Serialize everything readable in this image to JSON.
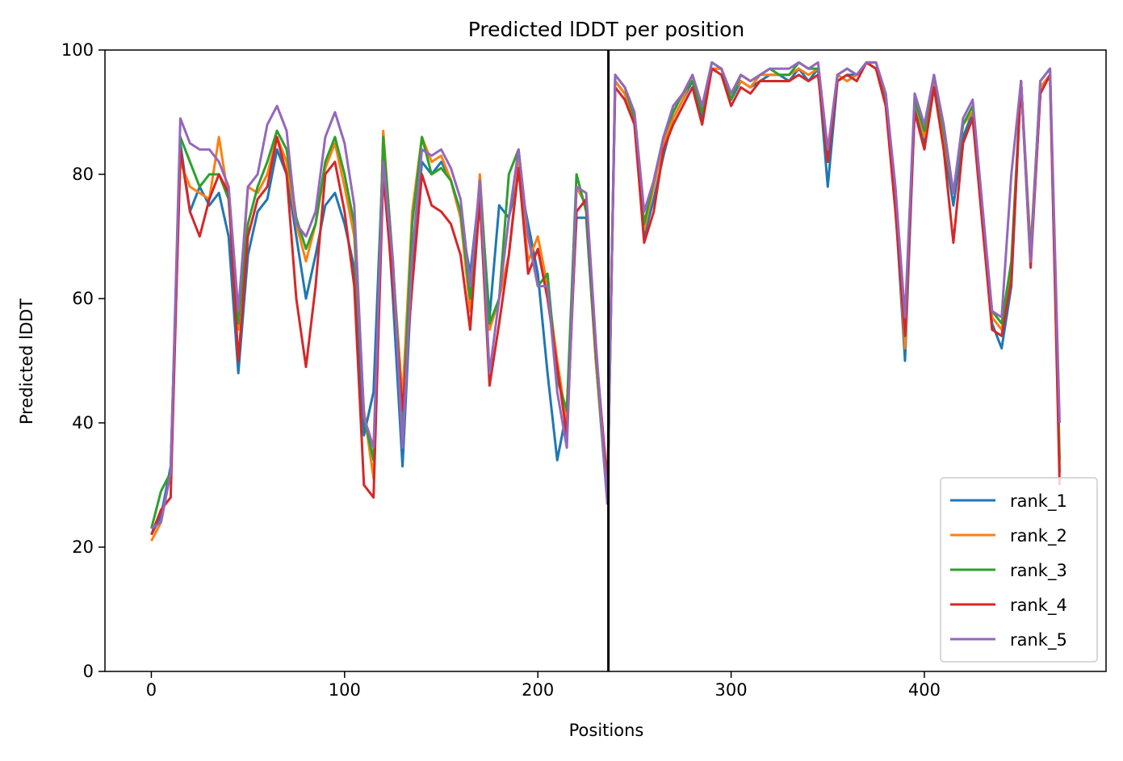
{
  "chart_data": {
    "type": "line",
    "title": "Predicted lDDT per position",
    "xlabel": "Positions",
    "ylabel": "Predicted lDDT",
    "xlim": [
      -24,
      494
    ],
    "ylim": [
      0,
      100
    ],
    "xticks": [
      0,
      100,
      200,
      300,
      400
    ],
    "yticks": [
      0,
      20,
      40,
      60,
      80,
      100
    ],
    "grid": false,
    "legend_position": "lower right",
    "vertical_line": {
      "x": 236.5,
      "color": "#000000"
    },
    "x": [
      0,
      5,
      10,
      15,
      20,
      25,
      30,
      35,
      40,
      45,
      50,
      55,
      60,
      65,
      70,
      75,
      80,
      85,
      90,
      95,
      100,
      105,
      110,
      115,
      120,
      125,
      130,
      135,
      140,
      145,
      150,
      155,
      160,
      165,
      170,
      175,
      180,
      185,
      190,
      195,
      200,
      205,
      210,
      215,
      220,
      225,
      230,
      236,
      240,
      245,
      250,
      255,
      260,
      265,
      270,
      275,
      280,
      285,
      290,
      295,
      300,
      305,
      310,
      315,
      320,
      325,
      330,
      335,
      340,
      345,
      350,
      355,
      360,
      365,
      370,
      375,
      380,
      385,
      390,
      395,
      400,
      405,
      410,
      415,
      420,
      425,
      430,
      435,
      440,
      445,
      450,
      455,
      460,
      465,
      470
    ],
    "series": [
      {
        "name": "rank_1",
        "color": "#1f77b4",
        "values": [
          22,
          25,
          33,
          85,
          74,
          78,
          75,
          77,
          70,
          48,
          67,
          74,
          76,
          84,
          80,
          70,
          60,
          67,
          75,
          77,
          72,
          65,
          38,
          45,
          84,
          60,
          33,
          65,
          82,
          80,
          82,
          79,
          73,
          64,
          78,
          57,
          75,
          73,
          80,
          72,
          64,
          48,
          34,
          42,
          73,
          73,
          50,
          27,
          95,
          93,
          88,
          70,
          76,
          83,
          89,
          92,
          95,
          89,
          97,
          97,
          92,
          95,
          94,
          95,
          96,
          96,
          95,
          97,
          95,
          97,
          78,
          95,
          96,
          96,
          98,
          97,
          93,
          75,
          50,
          91,
          85,
          95,
          85,
          75,
          86,
          90,
          72,
          56,
          52,
          62,
          95,
          66,
          93,
          96,
          32
        ],
        "line_width": 3
      },
      {
        "name": "rank_2",
        "color": "#ff7f0e",
        "values": [
          21,
          24,
          32,
          82,
          78,
          77,
          76,
          86,
          76,
          55,
          78,
          77,
          80,
          86,
          82,
          72,
          66,
          72,
          81,
          85,
          78,
          70,
          42,
          31,
          87,
          65,
          44,
          74,
          86,
          82,
          83,
          79,
          73,
          58,
          80,
          55,
          60,
          67,
          82,
          66,
          70,
          62,
          50,
          40,
          78,
          75,
          50,
          28,
          95,
          93,
          89,
          71,
          78,
          85,
          89,
          92,
          96,
          90,
          97,
          97,
          93,
          95,
          94,
          96,
          96,
          96,
          96,
          97,
          96,
          97,
          82,
          96,
          95,
          96,
          98,
          97,
          92,
          76,
          52,
          92,
          86,
          95,
          86,
          77,
          88,
          90,
          73,
          57,
          55,
          64,
          95,
          68,
          94,
          96,
          33
        ],
        "line_width": 3
      },
      {
        "name": "rank_3",
        "color": "#2ca02c",
        "values": [
          23,
          29,
          32,
          86,
          82,
          78,
          80,
          80,
          76,
          56,
          72,
          78,
          82,
          87,
          84,
          73,
          68,
          72,
          82,
          86,
          80,
          72,
          41,
          34,
          86,
          66,
          40,
          72,
          86,
          80,
          81,
          79,
          74,
          60,
          79,
          56,
          60,
          80,
          84,
          70,
          62,
          64,
          47,
          42,
          80,
          74,
          51,
          28,
          96,
          94,
          89,
          72,
          79,
          86,
          90,
          93,
          95,
          90,
          98,
          97,
          92,
          96,
          95,
          96,
          97,
          96,
          96,
          98,
          97,
          97,
          83,
          96,
          97,
          96,
          98,
          98,
          92,
          77,
          55,
          92,
          87,
          96,
          87,
          77,
          88,
          91,
          74,
          58,
          56,
          66,
          95,
          67,
          95,
          97,
          34
        ],
        "line_width": 3
      },
      {
        "name": "rank_4",
        "color": "#d62728",
        "values": [
          22,
          26,
          28,
          84,
          74,
          70,
          76,
          80,
          77,
          50,
          70,
          76,
          78,
          86,
          80,
          60,
          49,
          62,
          80,
          82,
          74,
          62,
          30,
          28,
          80,
          62,
          42,
          62,
          80,
          75,
          74,
          72,
          67,
          55,
          76,
          46,
          56,
          67,
          81,
          64,
          68,
          60,
          49,
          38,
          74,
          76,
          52,
          30,
          94,
          92,
          88,
          69,
          74,
          84,
          88,
          91,
          94,
          88,
          97,
          96,
          91,
          94,
          93,
          95,
          95,
          95,
          95,
          96,
          95,
          96,
          82,
          95,
          96,
          95,
          98,
          97,
          91,
          74,
          54,
          90,
          84,
          94,
          84,
          69,
          85,
          89,
          72,
          55,
          54,
          63,
          95,
          65,
          93,
          96,
          30
        ],
        "line_width": 3
      },
      {
        "name": "rank_5",
        "color": "#9467bd",
        "values": [
          23,
          24,
          32,
          89,
          85,
          84,
          84,
          82,
          78,
          58,
          78,
          80,
          88,
          91,
          87,
          72,
          70,
          74,
          86,
          90,
          85,
          75,
          41,
          36,
          82,
          66,
          36,
          67,
          84,
          83,
          84,
          81,
          76,
          62,
          79,
          48,
          60,
          73,
          84,
          70,
          62,
          62,
          45,
          36,
          78,
          77,
          53,
          27,
          96,
          94,
          90,
          74,
          79,
          86,
          91,
          93,
          96,
          91,
          98,
          97,
          93,
          96,
          95,
          96,
          97,
          97,
          97,
          98,
          97,
          98,
          84,
          96,
          97,
          96,
          98,
          98,
          93,
          78,
          57,
          93,
          88,
          96,
          88,
          77,
          89,
          92,
          75,
          58,
          57,
          80,
          95,
          66,
          95,
          97,
          40
        ],
        "line_width": 3
      }
    ]
  }
}
